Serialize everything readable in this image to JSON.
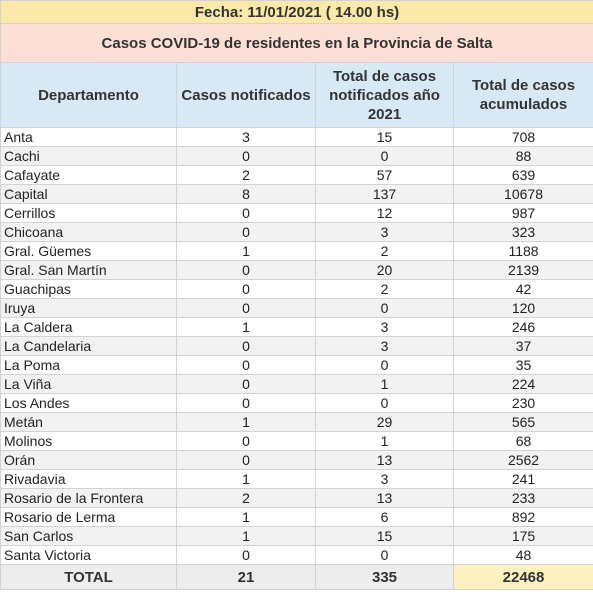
{
  "header": {
    "date": "Fecha: 11/01/2021 ( 14.00 hs)",
    "title": "Casos COVID-19 de residentes en la Provincia de Salta"
  },
  "columns": [
    "Departamento",
    "Casos notificados",
    "Total de casos notificados año 2021",
    "Total de casos acumulados"
  ],
  "rows": [
    {
      "dep": "Anta",
      "notificados": "3",
      "anio": "15",
      "acumulados": "708"
    },
    {
      "dep": "Cachi",
      "notificados": "0",
      "anio": "0",
      "acumulados": "88"
    },
    {
      "dep": "Cafayate",
      "notificados": "2",
      "anio": "57",
      "acumulados": "639"
    },
    {
      "dep": "Capital",
      "notificados": "8",
      "anio": "137",
      "acumulados": "10678"
    },
    {
      "dep": "Cerrillos",
      "notificados": "0",
      "anio": "12",
      "acumulados": "987"
    },
    {
      "dep": "Chicoana",
      "notificados": "0",
      "anio": "3",
      "acumulados": "323"
    },
    {
      "dep": "Gral. Güemes",
      "notificados": "1",
      "anio": "2",
      "acumulados": "1188"
    },
    {
      "dep": "Gral. San Martín",
      "notificados": "0",
      "anio": "20",
      "acumulados": "2139"
    },
    {
      "dep": "Guachipas",
      "notificados": "0",
      "anio": "2",
      "acumulados": "42"
    },
    {
      "dep": "Iruya",
      "notificados": "0",
      "anio": "0",
      "acumulados": "120"
    },
    {
      "dep": "La Caldera",
      "notificados": "1",
      "anio": "3",
      "acumulados": "246"
    },
    {
      "dep": "La Candelaria",
      "notificados": "0",
      "anio": "3",
      "acumulados": "37"
    },
    {
      "dep": "La Poma",
      "notificados": "0",
      "anio": "0",
      "acumulados": "35"
    },
    {
      "dep": "La Viña",
      "notificados": "0",
      "anio": "1",
      "acumulados": "224"
    },
    {
      "dep": "Los Andes",
      "notificados": "0",
      "anio": "0",
      "acumulados": "230"
    },
    {
      "dep": "Metán",
      "notificados": "1",
      "anio": "29",
      "acumulados": "565"
    },
    {
      "dep": "Molinos",
      "notificados": "0",
      "anio": "1",
      "acumulados": "68"
    },
    {
      "dep": "Orán",
      "notificados": "0",
      "anio": "13",
      "acumulados": "2562"
    },
    {
      "dep": "Rivadavia",
      "notificados": "1",
      "anio": "3",
      "acumulados": "241"
    },
    {
      "dep": "Rosario de la Frontera",
      "notificados": "2",
      "anio": "13",
      "acumulados": "233"
    },
    {
      "dep": "Rosario de Lerma",
      "notificados": "1",
      "anio": "6",
      "acumulados": "892"
    },
    {
      "dep": "San Carlos",
      "notificados": "1",
      "anio": "15",
      "acumulados": "175"
    },
    {
      "dep": "Santa Victoria",
      "notificados": "0",
      "anio": "0",
      "acumulados": "48"
    }
  ],
  "total": {
    "label": "TOTAL",
    "notificados": "21",
    "anio": "335",
    "acumulados": "22468"
  },
  "colors": {
    "date_bg": "#fbe9a9",
    "title_bg": "#fde0d5",
    "header_bg": "#d8e9f6",
    "total_accumulated_bg": "#fdf1c2"
  }
}
